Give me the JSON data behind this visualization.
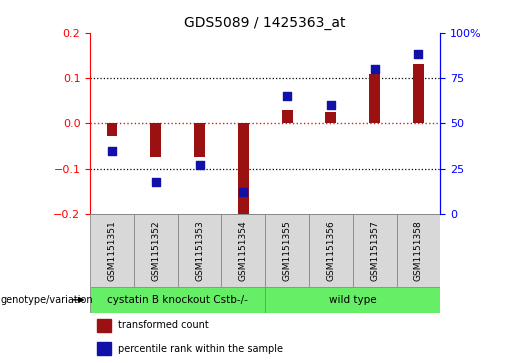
{
  "title": "GDS5089 / 1425363_at",
  "samples": [
    "GSM1151351",
    "GSM1151352",
    "GSM1151353",
    "GSM1151354",
    "GSM1151355",
    "GSM1151356",
    "GSM1151357",
    "GSM1151358"
  ],
  "transformed_count": [
    -0.028,
    -0.075,
    -0.073,
    -0.205,
    0.03,
    0.025,
    0.11,
    0.13
  ],
  "percentile_rank": [
    35,
    18,
    27,
    12,
    65,
    60,
    80,
    88
  ],
  "ylim_left": [
    -0.2,
    0.2
  ],
  "ylim_right": [
    0,
    100
  ],
  "left_yticks": [
    -0.2,
    -0.1,
    0.0,
    0.1,
    0.2
  ],
  "right_yticks": [
    0,
    25,
    50,
    75,
    100
  ],
  "bar_color": "#9B1010",
  "dot_color": "#1111AA",
  "zero_line_color": "#cc2222",
  "group1_label": "cystatin B knockout Cstb-/-",
  "group2_label": "wild type",
  "group1_indices": [
    0,
    1,
    2,
    3
  ],
  "group2_indices": [
    4,
    5,
    6,
    7
  ],
  "group_color": "#66EE66",
  "sample_box_color": "#D8D8D8",
  "legend_bar_label": "transformed count",
  "legend_dot_label": "percentile rank within the sample",
  "genotype_label": "genotype/variation"
}
